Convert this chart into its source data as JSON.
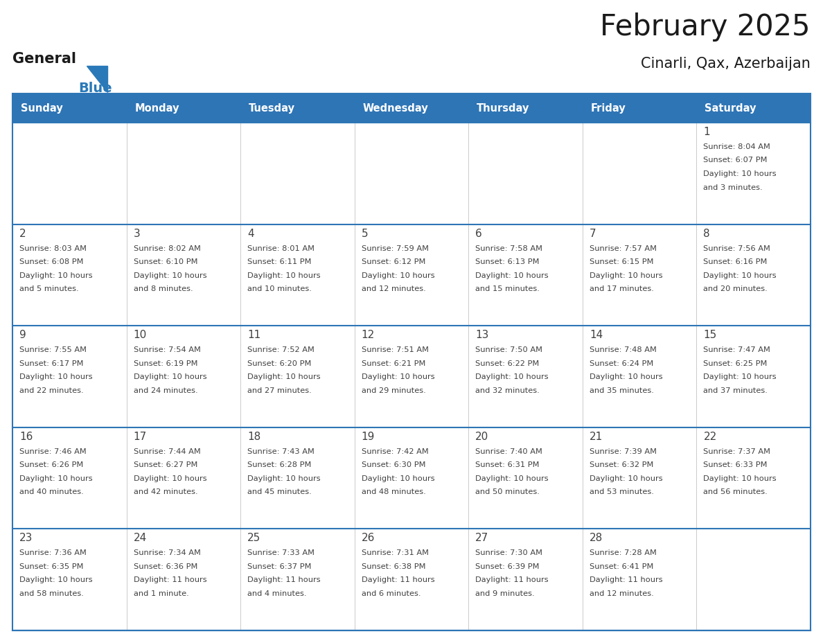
{
  "title": "February 2025",
  "subtitle": "Cinarli, Qax, Azerbaijan",
  "header_bg": "#2E75B6",
  "header_text_color": "#FFFFFF",
  "separator_color": "#2E75B6",
  "text_color": "#404040",
  "days_of_week": [
    "Sunday",
    "Monday",
    "Tuesday",
    "Wednesday",
    "Thursday",
    "Friday",
    "Saturday"
  ],
  "weeks": [
    [
      {
        "day": null,
        "info": null
      },
      {
        "day": null,
        "info": null
      },
      {
        "day": null,
        "info": null
      },
      {
        "day": null,
        "info": null
      },
      {
        "day": null,
        "info": null
      },
      {
        "day": null,
        "info": null
      },
      {
        "day": 1,
        "info": "Sunrise: 8:04 AM\nSunset: 6:07 PM\nDaylight: 10 hours\nand 3 minutes."
      }
    ],
    [
      {
        "day": 2,
        "info": "Sunrise: 8:03 AM\nSunset: 6:08 PM\nDaylight: 10 hours\nand 5 minutes."
      },
      {
        "day": 3,
        "info": "Sunrise: 8:02 AM\nSunset: 6:10 PM\nDaylight: 10 hours\nand 8 minutes."
      },
      {
        "day": 4,
        "info": "Sunrise: 8:01 AM\nSunset: 6:11 PM\nDaylight: 10 hours\nand 10 minutes."
      },
      {
        "day": 5,
        "info": "Sunrise: 7:59 AM\nSunset: 6:12 PM\nDaylight: 10 hours\nand 12 minutes."
      },
      {
        "day": 6,
        "info": "Sunrise: 7:58 AM\nSunset: 6:13 PM\nDaylight: 10 hours\nand 15 minutes."
      },
      {
        "day": 7,
        "info": "Sunrise: 7:57 AM\nSunset: 6:15 PM\nDaylight: 10 hours\nand 17 minutes."
      },
      {
        "day": 8,
        "info": "Sunrise: 7:56 AM\nSunset: 6:16 PM\nDaylight: 10 hours\nand 20 minutes."
      }
    ],
    [
      {
        "day": 9,
        "info": "Sunrise: 7:55 AM\nSunset: 6:17 PM\nDaylight: 10 hours\nand 22 minutes."
      },
      {
        "day": 10,
        "info": "Sunrise: 7:54 AM\nSunset: 6:19 PM\nDaylight: 10 hours\nand 24 minutes."
      },
      {
        "day": 11,
        "info": "Sunrise: 7:52 AM\nSunset: 6:20 PM\nDaylight: 10 hours\nand 27 minutes."
      },
      {
        "day": 12,
        "info": "Sunrise: 7:51 AM\nSunset: 6:21 PM\nDaylight: 10 hours\nand 29 minutes."
      },
      {
        "day": 13,
        "info": "Sunrise: 7:50 AM\nSunset: 6:22 PM\nDaylight: 10 hours\nand 32 minutes."
      },
      {
        "day": 14,
        "info": "Sunrise: 7:48 AM\nSunset: 6:24 PM\nDaylight: 10 hours\nand 35 minutes."
      },
      {
        "day": 15,
        "info": "Sunrise: 7:47 AM\nSunset: 6:25 PM\nDaylight: 10 hours\nand 37 minutes."
      }
    ],
    [
      {
        "day": 16,
        "info": "Sunrise: 7:46 AM\nSunset: 6:26 PM\nDaylight: 10 hours\nand 40 minutes."
      },
      {
        "day": 17,
        "info": "Sunrise: 7:44 AM\nSunset: 6:27 PM\nDaylight: 10 hours\nand 42 minutes."
      },
      {
        "day": 18,
        "info": "Sunrise: 7:43 AM\nSunset: 6:28 PM\nDaylight: 10 hours\nand 45 minutes."
      },
      {
        "day": 19,
        "info": "Sunrise: 7:42 AM\nSunset: 6:30 PM\nDaylight: 10 hours\nand 48 minutes."
      },
      {
        "day": 20,
        "info": "Sunrise: 7:40 AM\nSunset: 6:31 PM\nDaylight: 10 hours\nand 50 minutes."
      },
      {
        "day": 21,
        "info": "Sunrise: 7:39 AM\nSunset: 6:32 PM\nDaylight: 10 hours\nand 53 minutes."
      },
      {
        "day": 22,
        "info": "Sunrise: 7:37 AM\nSunset: 6:33 PM\nDaylight: 10 hours\nand 56 minutes."
      }
    ],
    [
      {
        "day": 23,
        "info": "Sunrise: 7:36 AM\nSunset: 6:35 PM\nDaylight: 10 hours\nand 58 minutes."
      },
      {
        "day": 24,
        "info": "Sunrise: 7:34 AM\nSunset: 6:36 PM\nDaylight: 11 hours\nand 1 minute."
      },
      {
        "day": 25,
        "info": "Sunrise: 7:33 AM\nSunset: 6:37 PM\nDaylight: 11 hours\nand 4 minutes."
      },
      {
        "day": 26,
        "info": "Sunrise: 7:31 AM\nSunset: 6:38 PM\nDaylight: 11 hours\nand 6 minutes."
      },
      {
        "day": 27,
        "info": "Sunrise: 7:30 AM\nSunset: 6:39 PM\nDaylight: 11 hours\nand 9 minutes."
      },
      {
        "day": 28,
        "info": "Sunrise: 7:28 AM\nSunset: 6:41 PM\nDaylight: 11 hours\nand 12 minutes."
      },
      {
        "day": null,
        "info": null
      }
    ]
  ],
  "logo_general_color": "#1a1a1a",
  "logo_blue_color": "#2979B8"
}
